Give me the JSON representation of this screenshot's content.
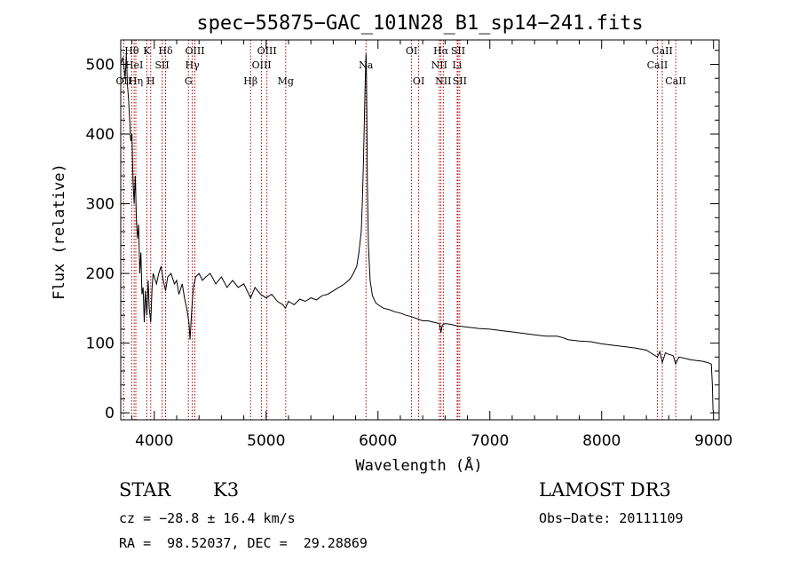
{
  "chart_data": {
    "type": "line",
    "title": "spec−55875−GAC_101N28_B1_sp14−241.fits",
    "xlabel": "Wavelength (Å)",
    "ylabel": "Flux (relative)",
    "xlim": [
      3700,
      9050
    ],
    "ylim": [
      -10,
      535
    ],
    "x_ticks": [
      4000,
      5000,
      6000,
      7000,
      8000,
      9000
    ],
    "y_ticks": [
      0,
      100,
      200,
      300,
      400,
      500
    ],
    "series": [
      {
        "name": "flux",
        "x": [
          3700,
          3720,
          3740,
          3750,
          3760,
          3770,
          3780,
          3790,
          3800,
          3810,
          3820,
          3830,
          3840,
          3850,
          3860,
          3870,
          3880,
          3890,
          3900,
          3910,
          3920,
          3933,
          3945,
          3955,
          3968,
          3980,
          3990,
          4000,
          4020,
          4040,
          4060,
          4080,
          4101,
          4120,
          4150,
          4180,
          4200,
          4220,
          4250,
          4270,
          4290,
          4300,
          4310,
          4320,
          4330,
          4340,
          4350,
          4370,
          4400,
          4430,
          4460,
          4500,
          4550,
          4600,
          4650,
          4700,
          4750,
          4800,
          4861,
          4900,
          4950,
          5000,
          5050,
          5100,
          5150,
          5172,
          5200,
          5250,
          5300,
          5350,
          5400,
          5450,
          5500,
          5550,
          5600,
          5650,
          5700,
          5750,
          5780,
          5810,
          5830,
          5850,
          5860,
          5870,
          5880,
          5885,
          5890,
          5893,
          5896,
          5900,
          5905,
          5915,
          5930,
          5950,
          5980,
          6000,
          6050,
          6100,
          6150,
          6200,
          6250,
          6300,
          6350,
          6400,
          6450,
          6500,
          6550,
          6563,
          6575,
          6600,
          6650,
          6700,
          6750,
          6800,
          6850,
          6900,
          7000,
          7100,
          7200,
          7300,
          7400,
          7500,
          7600,
          7650,
          7700,
          7800,
          7900,
          8000,
          8100,
          8200,
          8300,
          8400,
          8498,
          8520,
          8542,
          8570,
          8600,
          8640,
          8662,
          8690,
          8750,
          8800,
          8850,
          8900,
          8950,
          8980,
          8990,
          8995,
          9000
        ],
        "values": [
          500,
          510,
          480,
          515,
          470,
          450,
          420,
          390,
          400,
          330,
          300,
          340,
          280,
          250,
          270,
          200,
          230,
          170,
          180,
          130,
          175,
          140,
          190,
          150,
          130,
          180,
          200,
          195,
          185,
          200,
          210,
          190,
          175,
          195,
          200,
          185,
          190,
          170,
          185,
          165,
          150,
          140,
          130,
          105,
          135,
          160,
          180,
          195,
          200,
          190,
          195,
          200,
          185,
          195,
          180,
          190,
          180,
          185,
          165,
          180,
          170,
          165,
          170,
          160,
          155,
          150,
          160,
          155,
          163,
          160,
          165,
          162,
          168,
          170,
          175,
          180,
          185,
          192,
          200,
          210,
          230,
          260,
          300,
          360,
          430,
          470,
          500,
          515,
          495,
          430,
          330,
          240,
          190,
          168,
          158,
          155,
          150,
          148,
          145,
          143,
          140,
          138,
          135,
          132,
          132,
          130,
          128,
          115,
          126,
          128,
          127,
          125,
          124,
          123,
          122,
          121,
          120,
          118,
          116,
          114,
          112,
          110,
          110,
          108,
          105,
          103,
          102,
          99,
          97,
          95,
          93,
          90,
          80,
          88,
          72,
          86,
          84,
          82,
          70,
          80,
          78,
          76,
          75,
          74,
          72,
          70,
          40,
          5,
          0
        ]
      }
    ],
    "line_markers": [
      {
        "label": "OII",
        "x": 3727,
        "row": 3
      },
      {
        "label": "Hθ",
        "x": 3798,
        "row": 1
      },
      {
        "label": "HeI",
        "x": 3820,
        "row": 2
      },
      {
        "label": "Hη",
        "x": 3835,
        "row": 3
      },
      {
        "label": "K",
        "x": 3933,
        "row": 1
      },
      {
        "label": "SII",
        "x": 4070,
        "row": 2
      },
      {
        "label": "H",
        "x": 3968,
        "row": 3
      },
      {
        "label": "Hδ",
        "x": 4101,
        "row": 1
      },
      {
        "label": "OIII",
        "x": 4363,
        "row": 1
      },
      {
        "label": "Hγ",
        "x": 4340,
        "row": 2
      },
      {
        "label": "G",
        "x": 4305,
        "row": 3
      },
      {
        "label": "Hβ",
        "x": 4861,
        "row": 3
      },
      {
        "label": "OIII",
        "x": 5007,
        "row": 1
      },
      {
        "label": "OIII",
        "x": 4959,
        "row": 2
      },
      {
        "label": "Mg",
        "x": 5175,
        "row": 3
      },
      {
        "label": "Na",
        "x": 5893,
        "row": 2
      },
      {
        "label": "OI",
        "x": 6300,
        "row": 1
      },
      {
        "label": "OI",
        "x": 6364,
        "row": 3
      },
      {
        "label": "Hα",
        "x": 6563,
        "row": 1
      },
      {
        "label": "SII",
        "x": 6716,
        "row": 1
      },
      {
        "label": "NII",
        "x": 6548,
        "row": 2
      },
      {
        "label": "Li",
        "x": 6708,
        "row": 2
      },
      {
        "label": "NII",
        "x": 6584,
        "row": 3
      },
      {
        "label": "SII",
        "x": 6731,
        "row": 3
      },
      {
        "label": "CaII",
        "x": 8542,
        "row": 1
      },
      {
        "label": "CaII",
        "x": 8498,
        "row": 2
      },
      {
        "label": "CaII",
        "x": 8662,
        "row": 3
      }
    ]
  },
  "info": {
    "object_class": "STAR",
    "subclass": "K3",
    "redshift": "cz = −28.8 ± 16.4 km/s",
    "coordinates": "RA =  98.52037, DEC =  29.28869",
    "survey": "LAMOST DR3",
    "obs_date": "Obs−Date: 20111109"
  },
  "colors": {
    "line_marker": "#b00000",
    "spectrum": "#000000"
  }
}
